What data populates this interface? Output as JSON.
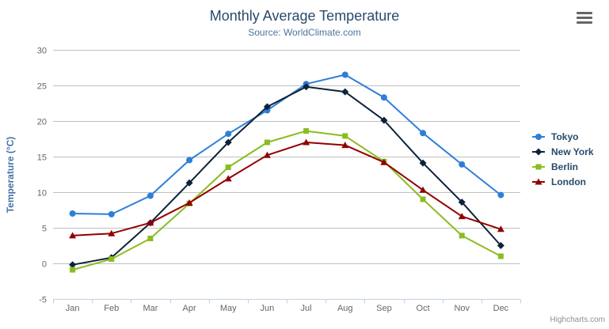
{
  "credits": "Highcharts.com",
  "context_menu_icon": "hamburger-icon",
  "chart_data": {
    "type": "line",
    "title": "Monthly Average Temperature",
    "subtitle": "Source: WorldClimate.com",
    "xlabel": "",
    "ylabel": "Temperature (°C)",
    "categories": [
      "Jan",
      "Feb",
      "Mar",
      "Apr",
      "May",
      "Jun",
      "Jul",
      "Aug",
      "Sep",
      "Oct",
      "Nov",
      "Dec"
    ],
    "ylim": [
      -5,
      30
    ],
    "ytick_step": 5,
    "grid": true,
    "legend_position": "right",
    "colors": {
      "grid": "#C0C0C0",
      "axis_line": "#C0D0E0",
      "tick_label": "#666666",
      "title": "#274b6d",
      "subtitle": "#4d759e",
      "axis_title": "#4572a7"
    },
    "series": [
      {
        "name": "Tokyo",
        "color": "#2f7ed8",
        "marker": "circle",
        "values": [
          7.0,
          6.9,
          9.5,
          14.5,
          18.2,
          21.5,
          25.2,
          26.5,
          23.3,
          18.3,
          13.9,
          9.6
        ]
      },
      {
        "name": "New York",
        "color": "#0d233a",
        "marker": "diamond",
        "values": [
          -0.2,
          0.8,
          5.7,
          11.3,
          17.0,
          22.0,
          24.8,
          24.1,
          20.1,
          14.1,
          8.6,
          2.5
        ]
      },
      {
        "name": "Berlin",
        "color": "#8bbc21",
        "marker": "square",
        "values": [
          -0.9,
          0.6,
          3.5,
          8.4,
          13.5,
          17.0,
          18.6,
          17.9,
          14.3,
          9.0,
          3.9,
          1.0
        ]
      },
      {
        "name": "London",
        "color": "#910000",
        "marker": "triangle",
        "values": [
          3.9,
          4.2,
          5.7,
          8.5,
          11.9,
          15.2,
          17.0,
          16.6,
          14.2,
          10.3,
          6.6,
          4.8
        ]
      }
    ]
  }
}
